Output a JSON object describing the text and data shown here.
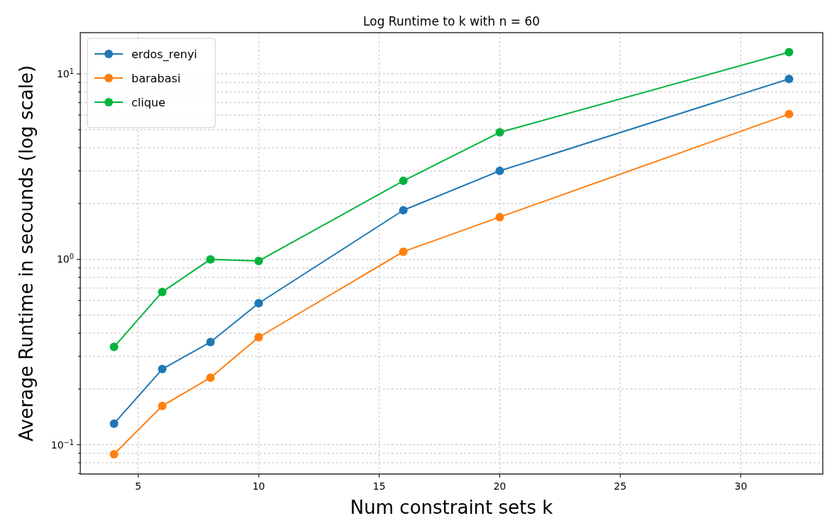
{
  "chart_data": {
    "type": "line",
    "title": "Log Runtime to k with n = 60",
    "xlabel": "Num constraint sets k",
    "ylabel": "Average Runtime in secounds (log scale)",
    "x": [
      4,
      6,
      8,
      10,
      16,
      20,
      32
    ],
    "series": [
      {
        "name": "erdos_renyi",
        "color": "#1f77b4",
        "values": [
          0.13,
          0.256,
          0.358,
          0.58,
          1.84,
          3.0,
          9.4
        ]
      },
      {
        "name": "barabasi",
        "color": "#ff7f0e",
        "values": [
          0.089,
          0.162,
          0.23,
          0.38,
          1.1,
          1.69,
          6.07
        ]
      },
      {
        "name": "clique",
        "color": "#00b33c",
        "values": [
          0.337,
          0.667,
          1.0,
          0.98,
          2.65,
          4.84,
          13.1
        ]
      }
    ],
    "xlim": [
      2.6,
      33.4
    ],
    "xticks": [
      5,
      10,
      15,
      20,
      25,
      30
    ],
    "ylim": [
      0.0695,
      16.7
    ],
    "log": "y",
    "yticks": [
      {
        "value": 0.07,
        "label": null
      },
      {
        "value": 0.08,
        "label": null
      },
      {
        "value": 0.09,
        "label": null
      },
      {
        "value": 0.1,
        "label": "10$^{−1}$"
      },
      {
        "value": 0.2,
        "label": null
      },
      {
        "value": 0.3,
        "label": null
      },
      {
        "value": 0.4,
        "label": null
      },
      {
        "value": 0.5,
        "label": null
      },
      {
        "value": 0.6,
        "label": null
      },
      {
        "value": 0.7,
        "label": null
      },
      {
        "value": 0.8,
        "label": null
      },
      {
        "value": 0.9,
        "label": null
      },
      {
        "value": 1,
        "label": "10$^{0}$"
      },
      {
        "value": 2,
        "label": null
      },
      {
        "value": 3,
        "label": null
      },
      {
        "value": 4,
        "label": null
      },
      {
        "value": 5,
        "label": null
      },
      {
        "value": 6,
        "label": null
      },
      {
        "value": 7,
        "label": null
      },
      {
        "value": 8,
        "label": null
      },
      {
        "value": 9,
        "label": null
      },
      {
        "value": 10,
        "label": "10$^{1}$"
      }
    ],
    "grid": true,
    "legend": "top left",
    "marker": "circle",
    "line_style": "solid"
  }
}
